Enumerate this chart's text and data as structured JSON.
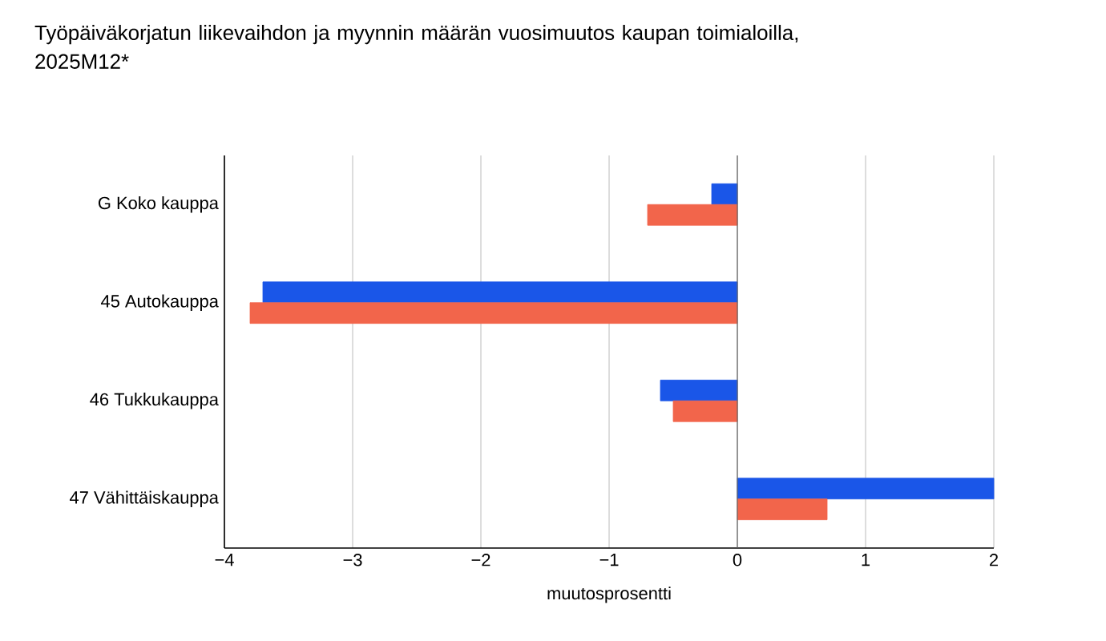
{
  "chart_data": {
    "type": "bar",
    "orientation": "horizontal",
    "title": "Työpäiväkorjatun liikevaihdon ja myynnin määrän vuosimuutos kaupan toimialoilla, 2025M12*",
    "xlabel": "muutosprosentti",
    "categories": [
      "G Koko kauppa",
      "45 Autokauppa",
      "46 Tukkukauppa",
      "47 Vähittäiskauppa"
    ],
    "series": [
      {
        "color": "#1a56e8",
        "values": [
          -0.2,
          -3.7,
          -0.6,
          2.0
        ]
      },
      {
        "color": "#f2654b",
        "values": [
          -0.7,
          -3.8,
          -0.5,
          0.7
        ]
      }
    ],
    "xlim": [
      -4,
      2
    ],
    "xticks": [
      {
        "value": -4,
        "label": "−4"
      },
      {
        "value": -3,
        "label": "−3"
      },
      {
        "value": -2,
        "label": "−2"
      },
      {
        "value": -1,
        "label": "−1"
      },
      0,
      1,
      2
    ],
    "grid": "x"
  }
}
